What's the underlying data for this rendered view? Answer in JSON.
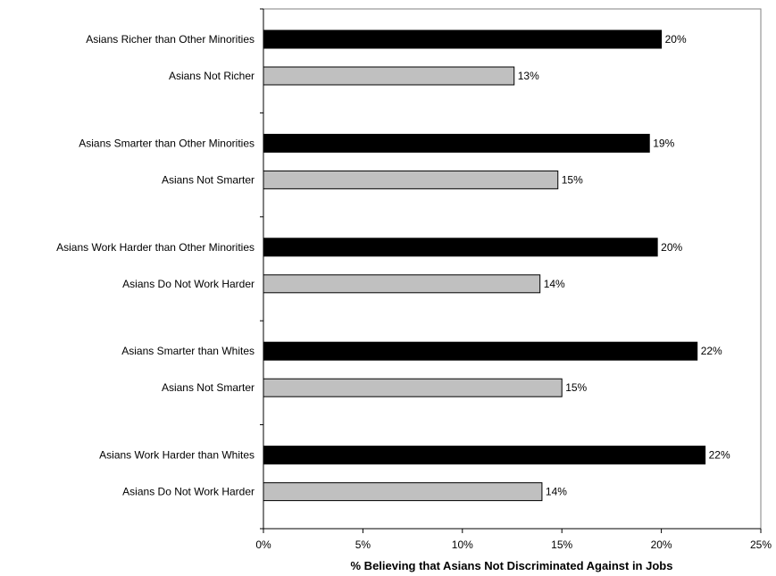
{
  "chart_data": {
    "type": "bar",
    "orientation": "horizontal",
    "title": "",
    "xlabel": "% Believing that Asians Not Discriminated Against in Jobs",
    "ylabel": "",
    "xlim": [
      0,
      25
    ],
    "xticks": [
      "0%",
      "5%",
      "10%",
      "15%",
      "20%",
      "25%"
    ],
    "grid": false,
    "legend": "none",
    "colors": {
      "comparison": "#000000",
      "baseline": "#c0c0c0"
    },
    "groups": [
      {
        "bars": [
          {
            "label": "Asians Richer than Other Minorities",
            "value": 20,
            "value_label": "20%",
            "style": "comparison"
          },
          {
            "label": "Asians Not Richer",
            "value": 12.6,
            "value_label": "13%",
            "style": "baseline"
          }
        ]
      },
      {
        "bars": [
          {
            "label": "Asians Smarter than Other Minorities",
            "value": 19.4,
            "value_label": "19%",
            "style": "comparison"
          },
          {
            "label": "Asians Not Smarter",
            "value": 14.8,
            "value_label": "15%",
            "style": "baseline"
          }
        ]
      },
      {
        "bars": [
          {
            "label": "Asians Work Harder than Other Minorities",
            "value": 19.8,
            "value_label": "20%",
            "style": "comparison"
          },
          {
            "label": "Asians Do Not Work Harder",
            "value": 13.9,
            "value_label": "14%",
            "style": "baseline"
          }
        ]
      },
      {
        "bars": [
          {
            "label": "Asians Smarter than Whites",
            "value": 21.8,
            "value_label": "22%",
            "style": "comparison"
          },
          {
            "label": "Asians Not Smarter",
            "value": 15,
            "value_label": "15%",
            "style": "baseline"
          }
        ]
      },
      {
        "bars": [
          {
            "label": "Asians Work Harder than Whites",
            "value": 22.2,
            "value_label": "22%",
            "style": "comparison"
          },
          {
            "label": "Asians Do Not Work Harder",
            "value": 14,
            "value_label": "14%",
            "style": "baseline"
          }
        ]
      }
    ]
  }
}
